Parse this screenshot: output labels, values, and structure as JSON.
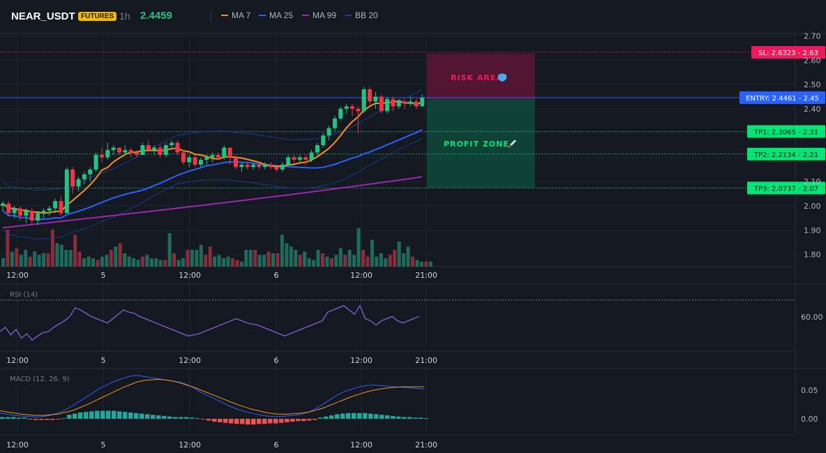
{
  "header": {
    "symbol": "NEAR_USDT",
    "badge": "FUTURES",
    "interval": "1h",
    "price": "2.4459",
    "legend": [
      {
        "label": "MA 7",
        "color": "#f7931a"
      },
      {
        "label": "MA 25",
        "color": "#2962ff"
      },
      {
        "label": "MA 99",
        "color": "#9c27b0"
      },
      {
        "label": "BB 20",
        "color": "#1e3a8a"
      }
    ]
  },
  "colors": {
    "up": "#26c281",
    "down": "#f23645",
    "bg": "#141821"
  },
  "zones": {
    "risk_label": "RISK AREA",
    "profit_label": "PROFIT ZONE",
    "risk_icon": "shield-icon",
    "profit_icon": "rocket-icon"
  },
  "levels": [
    {
      "label": "SL: 2.6323 - 2.63",
      "price": 2.6323,
      "color": "#f0195c",
      "kind": "sl"
    },
    {
      "label": "ENTRY: 2.4461 - 2.45",
      "price": 2.4461,
      "color": "#2962ff",
      "kind": "entry"
    },
    {
      "label": "TP1: 2.3065 - 2.31",
      "price": 2.3065,
      "color": "#00e676",
      "kind": "tp"
    },
    {
      "label": "TP2: 2.2134 - 2.21",
      "price": 2.2134,
      "color": "#00e676",
      "kind": "tp"
    },
    {
      "label": "TP3: 2.0737 - 2.07",
      "price": 2.0737,
      "color": "#00e676",
      "kind": "tp"
    }
  ],
  "price_axis": {
    "ticks": [
      "2.70",
      "2.60",
      "2.50",
      "2.40",
      "2.10",
      "2.00",
      "1.90",
      "1.80"
    ],
    "range": [
      1.75,
      2.71
    ]
  },
  "time_axis": [
    "12:00",
    "5",
    "12:00",
    "6",
    "12:00",
    "21:00"
  ],
  "rsi": {
    "title": "RSI (14)",
    "tick": "60.00"
  },
  "macd": {
    "title": "MACD (12, 26, 9)",
    "ticks": [
      "0.05",
      "0.00"
    ]
  },
  "chart_data": {
    "type": "candlestick",
    "candles": [
      [
        2.0,
        2.02,
        1.98,
        2.01
      ],
      [
        2.01,
        2.02,
        1.96,
        1.97
      ],
      [
        1.97,
        2.0,
        1.95,
        1.99
      ],
      [
        1.99,
        2.0,
        1.94,
        1.96
      ],
      [
        1.96,
        1.99,
        1.93,
        1.98
      ],
      [
        1.98,
        1.99,
        1.92,
        1.94
      ],
      [
        1.94,
        1.98,
        1.92,
        1.97
      ],
      [
        1.97,
        1.99,
        1.95,
        1.98
      ],
      [
        1.98,
        2.0,
        1.96,
        1.99
      ],
      [
        1.99,
        2.03,
        1.97,
        2.02
      ],
      [
        2.02,
        2.04,
        1.96,
        1.97
      ],
      [
        1.97,
        2.16,
        1.97,
        2.15
      ],
      [
        2.15,
        2.16,
        2.05,
        2.08
      ],
      [
        2.08,
        2.12,
        2.06,
        2.11
      ],
      [
        2.11,
        2.14,
        2.09,
        2.13
      ],
      [
        2.13,
        2.16,
        2.1,
        2.15
      ],
      [
        2.15,
        2.22,
        2.14,
        2.21
      ],
      [
        2.21,
        2.24,
        2.18,
        2.2
      ],
      [
        2.2,
        2.26,
        2.19,
        2.23
      ],
      [
        2.23,
        2.25,
        2.21,
        2.24
      ],
      [
        2.24,
        2.24,
        2.21,
        2.22
      ],
      [
        2.22,
        2.25,
        2.21,
        2.23
      ],
      [
        2.23,
        2.24,
        2.2,
        2.22
      ],
      [
        2.22,
        2.23,
        2.2,
        2.21
      ],
      [
        2.21,
        2.26,
        2.21,
        2.25
      ],
      [
        2.25,
        2.27,
        2.22,
        2.23
      ],
      [
        2.23,
        2.25,
        2.21,
        2.24
      ],
      [
        2.24,
        2.25,
        2.2,
        2.21
      ],
      [
        2.21,
        2.26,
        2.2,
        2.25
      ],
      [
        2.25,
        2.27,
        2.24,
        2.26
      ],
      [
        2.26,
        2.27,
        2.21,
        2.22
      ],
      [
        2.22,
        2.23,
        2.17,
        2.18
      ],
      [
        2.18,
        2.21,
        2.16,
        2.2
      ],
      [
        2.2,
        2.21,
        2.16,
        2.17
      ],
      [
        2.17,
        2.2,
        2.16,
        2.19
      ],
      [
        2.19,
        2.21,
        2.17,
        2.2
      ],
      [
        2.2,
        2.22,
        2.18,
        2.21
      ],
      [
        2.21,
        2.22,
        2.19,
        2.2
      ],
      [
        2.2,
        2.25,
        2.19,
        2.24
      ],
      [
        2.24,
        2.24,
        2.17,
        2.2
      ],
      [
        2.2,
        2.21,
        2.15,
        2.16
      ],
      [
        2.16,
        2.18,
        2.14,
        2.17
      ],
      [
        2.17,
        2.18,
        2.15,
        2.16
      ],
      [
        2.16,
        2.18,
        2.15,
        2.17
      ],
      [
        2.17,
        2.18,
        2.15,
        2.16
      ],
      [
        2.16,
        2.18,
        2.15,
        2.17
      ],
      [
        2.17,
        2.18,
        2.15,
        2.16
      ],
      [
        2.16,
        2.17,
        2.14,
        2.15
      ],
      [
        2.15,
        2.18,
        2.14,
        2.17
      ],
      [
        2.17,
        2.21,
        2.17,
        2.2
      ],
      [
        2.2,
        2.21,
        2.18,
        2.19
      ],
      [
        2.19,
        2.21,
        2.18,
        2.2
      ],
      [
        2.2,
        2.21,
        2.17,
        2.19
      ],
      [
        2.19,
        2.23,
        2.18,
        2.22
      ],
      [
        2.22,
        2.26,
        2.21,
        2.25
      ],
      [
        2.25,
        2.3,
        2.24,
        2.29
      ],
      [
        2.29,
        2.33,
        2.27,
        2.32
      ],
      [
        2.32,
        2.37,
        2.31,
        2.36
      ],
      [
        2.36,
        2.41,
        2.35,
        2.4
      ],
      [
        2.4,
        2.42,
        2.38,
        2.41
      ],
      [
        2.41,
        2.42,
        2.37,
        2.4
      ],
      [
        2.4,
        2.41,
        2.3,
        2.39
      ],
      [
        2.39,
        2.49,
        2.38,
        2.48
      ],
      [
        2.48,
        2.49,
        2.41,
        2.43
      ],
      [
        2.43,
        2.47,
        2.4,
        2.45
      ],
      [
        2.45,
        2.46,
        2.38,
        2.39
      ],
      [
        2.39,
        2.45,
        2.38,
        2.44
      ],
      [
        2.44,
        2.45,
        2.39,
        2.41
      ],
      [
        2.41,
        2.44,
        2.4,
        2.43
      ],
      [
        2.43,
        2.44,
        2.4,
        2.42
      ],
      [
        2.42,
        2.45,
        2.41,
        2.43
      ],
      [
        2.43,
        2.44,
        2.4,
        2.41
      ],
      [
        2.41,
        2.46,
        2.41,
        2.4459
      ]
    ],
    "volume": [
      1.0,
      4.4,
      1.8,
      2.2,
      1.4,
      2.0,
      1.2,
      1.8,
      1.4,
      1.6,
      1.6,
      4.4,
      2.8,
      2.6,
      2.0,
      2.0,
      3.8,
      1.8,
      1.0,
      1.2,
      1.0,
      0.8,
      1.2,
      1.4,
      2.0,
      2.4,
      2.8,
      1.6,
      1.2,
      1.0,
      0.8,
      1.2,
      1.4,
      1.0,
      1.0,
      0.8,
      0.8,
      4.0,
      1.6,
      0.8,
      1.0,
      2.0,
      2.0,
      2.0,
      2.6,
      1.4,
      2.4,
      1.2,
      1.4,
      1.0,
      1.2,
      1.0,
      0.8,
      0.6,
      2.0,
      2.0,
      2.0,
      1.4,
      1.4,
      1.8,
      1.6,
      1.6,
      3.8,
      2.8,
      2.4,
      2.0,
      1.4,
      1.8,
      1.0,
      0.8,
      2.0,
      1.6,
      1.2,
      1.0,
      1.4,
      2.2,
      1.4,
      2.0,
      1.4,
      4.6,
      2.0,
      1.2,
      3.2,
      1.2,
      1.6,
      1.0,
      1.4,
      2.0,
      3.0,
      1.6,
      2.4,
      1.2,
      0.8,
      0.6,
      0.6,
      0.6
    ],
    "rsi": [
      48,
      52,
      45,
      50,
      42,
      46,
      40,
      44,
      47,
      48,
      52,
      55,
      58,
      62,
      70,
      68,
      65,
      62,
      60,
      58,
      56,
      60,
      64,
      68,
      66,
      65,
      62,
      60,
      58,
      56,
      54,
      52,
      50,
      48,
      46,
      44,
      45,
      46,
      48,
      50,
      52,
      54,
      56,
      58,
      60,
      58,
      56,
      55,
      54,
      52,
      50,
      48,
      46,
      44,
      46,
      48,
      50,
      52,
      54,
      56,
      58,
      66,
      68,
      70,
      72,
      68,
      64,
      72,
      60,
      58,
      54,
      58,
      60,
      62,
      58,
      56,
      58,
      60,
      62
    ],
    "macd": [
      0.01,
      0.008,
      0.006,
      0.005,
      0.004,
      0.003,
      0.004,
      0.006,
      0.01,
      0.015,
      0.022,
      0.03,
      0.038,
      0.046,
      0.054,
      0.06,
      0.066,
      0.07,
      0.074,
      0.076,
      0.074,
      0.072,
      0.07,
      0.068,
      0.066,
      0.064,
      0.06,
      0.054,
      0.046,
      0.04,
      0.034,
      0.028,
      0.022,
      0.017,
      0.013,
      0.01,
      0.007,
      0.005,
      0.004,
      0.004,
      0.005,
      0.006,
      0.008,
      0.012,
      0.018,
      0.026,
      0.034,
      0.042,
      0.048,
      0.052,
      0.056,
      0.058,
      0.059,
      0.058,
      0.057,
      0.056,
      0.055,
      0.054,
      0.053,
      0.052
    ],
    "signal": [
      0.014,
      0.012,
      0.01,
      0.008,
      0.007,
      0.006,
      0.006,
      0.007,
      0.008,
      0.011,
      0.014,
      0.019,
      0.024,
      0.03,
      0.036,
      0.042,
      0.048,
      0.054,
      0.059,
      0.064,
      0.067,
      0.068,
      0.069,
      0.068,
      0.066,
      0.063,
      0.059,
      0.055,
      0.05,
      0.045,
      0.04,
      0.035,
      0.03,
      0.025,
      0.021,
      0.017,
      0.014,
      0.011,
      0.009,
      0.008,
      0.008,
      0.009,
      0.01,
      0.012,
      0.015,
      0.019,
      0.024,
      0.029,
      0.034,
      0.039,
      0.043,
      0.047,
      0.05,
      0.052,
      0.054,
      0.055,
      0.056,
      0.056,
      0.056,
      0.056
    ],
    "hist": [
      0.003,
      0.003,
      0.003,
      0.002,
      0.002,
      -0.001,
      -0.002,
      -0.002,
      -0.002,
      -0.002,
      -0.001,
      0.001,
      0.007,
      0.009,
      0.011,
      0.012,
      0.013,
      0.014,
      0.014,
      0.014,
      0.014,
      0.013,
      0.012,
      0.011,
      0.01,
      0.009,
      0.008,
      0.007,
      0.006,
      0.005,
      0.004,
      0.003,
      0.003,
      0.003,
      0.002,
      0.001,
      -0.001,
      -0.003,
      -0.005,
      -0.006,
      -0.007,
      -0.008,
      -0.009,
      -0.009,
      -0.01,
      -0.01,
      -0.009,
      -0.009,
      -0.008,
      -0.008,
      -0.007,
      -0.006,
      -0.005,
      -0.004,
      -0.004,
      -0.003,
      -0.002,
      0.002,
      0.004,
      0.006,
      0.008,
      0.009,
      0.01,
      0.01,
      0.01,
      0.01,
      0.009,
      0.008,
      0.007,
      0.006,
      0.005,
      0.004,
      0.003,
      0.003,
      0.002,
      0.002,
      0.001
    ]
  }
}
